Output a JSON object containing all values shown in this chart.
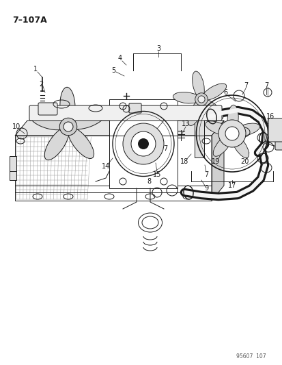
{
  "title": "7–107A",
  "footer": "95607  107",
  "bg_color": "#ffffff",
  "line_color": "#1a1a1a",
  "fig_w": 4.14,
  "fig_h": 5.33,
  "dpi": 100
}
